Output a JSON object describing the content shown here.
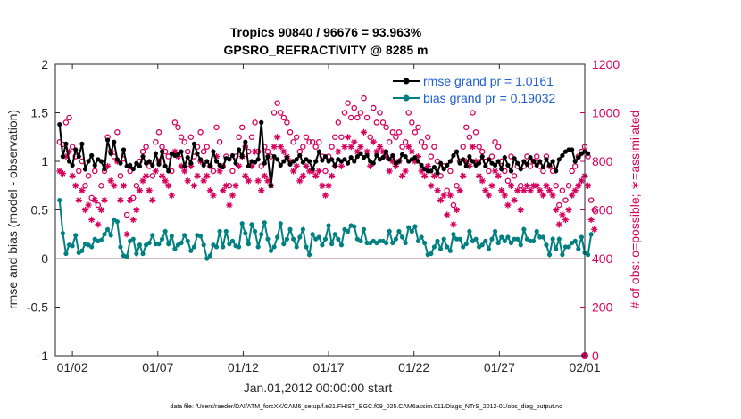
{
  "chart_data": {
    "type": "line",
    "title": "Tropics 90840 / 96676 = 93.963%",
    "subtitle": "GPSRO_REFRACTIVITY @ 8285 m",
    "xlabel": "Jan.01,2012 00:00:00 start",
    "ylabel": "rmse and bias (model - observation)",
    "y2label": "# of obs: o=possible; ∗=assimilated",
    "footnote": "data file: /Users/raeder/DAI/ATM_forcXX/CAM6_setup/f.e21.FHIST_BGC.f09_025.CAM6assim.011/Diags_NTrS_2012-01/obs_diag_output.nc",
    "xlim": [
      0.5,
      31.5
    ],
    "ylim": [
      -1,
      2
    ],
    "y2lim": [
      0,
      1200
    ],
    "x_ticks": [
      1.5,
      6.5,
      11.5,
      16.5,
      21.5,
      26.5,
      31.5
    ],
    "x_tick_labels": [
      "01/02",
      "01/07",
      "01/12",
      "01/17",
      "01/22",
      "01/27",
      "02/01"
    ],
    "y_ticks": [
      -1,
      -0.5,
      0,
      0.5,
      1,
      1.5,
      2
    ],
    "y_tick_labels": [
      "-1",
      "-0.5",
      "0",
      "0.5",
      "1",
      "1.5",
      "2"
    ],
    "y2_ticks": [
      0,
      200,
      400,
      600,
      800,
      1000,
      1200
    ],
    "y2_tick_labels": [
      "0",
      "200",
      "400",
      "600",
      "800",
      "1000",
      "1200"
    ],
    "legend_position": "top-right",
    "colors": {
      "rmse": "#000000",
      "bias": "#008080",
      "obs": "#d6005c",
      "zero_line": "#c9a5a5",
      "legend_text": "#1f5fd1"
    },
    "series": [
      {
        "name": "rmse grand pr = 1.0161",
        "values": [
          1.38,
          1.05,
          1.18,
          1.0,
          0.96,
          1.12,
          1.05,
          1.18,
          0.92,
          1.0,
          1.06,
          0.96,
          1.02,
          1.0,
          0.92,
          1.22,
          1.08,
          1.2,
          1.02,
          0.98,
          1.12,
          0.95,
          0.96,
          0.92,
          0.98,
          0.95,
          1.05,
          0.98,
          1.0,
          0.96,
          1.08,
          0.97,
          1.1,
          0.95,
          0.9,
          1.08,
          1.06,
          1.07,
          1.1,
          0.95,
          1.04,
          0.98,
          1.18,
          1.08,
          1.02,
          0.96,
          1.0,
          0.95,
          1.1,
          1.0,
          0.96,
          0.94,
          1.03,
          1.02,
          1.06,
          0.98,
          1.12,
          1.05,
          1.2,
          0.95,
          1.0,
          0.99,
          1.02,
          1.4,
          0.98,
          1.05,
          0.75,
          1.05,
          1.02,
          0.96,
          1.0,
          1.04,
          0.97,
          1.0,
          1.02,
          1.06,
          0.99,
          1.02,
          1.0,
          0.92,
          1.0,
          1.1,
          1.01,
          1.05,
          1.0,
          1.02,
          0.96,
          1.02,
          1.0,
          1.02,
          0.98,
          1.04,
          1.0,
          1.05,
          1.08,
          1.04,
          1.06,
          1.0,
          0.98,
          1.06,
          1.02,
          1.04,
          1.1,
          1.02,
          1.06,
          0.98,
          1.0,
          1.07,
          1.05,
          1.0,
          1.02,
          1.04,
          1.0,
          0.96,
          0.92,
          0.9,
          0.9,
          0.94,
          0.88,
          0.98,
          0.92,
          0.96,
          1.0,
          1.06,
          1.1,
          0.98,
          1.02,
          0.95,
          1.05,
          1.0,
          0.96,
          0.98,
          1.05,
          0.95,
          1.02,
          0.98,
          0.96,
          1.0,
          0.92,
          1.04,
          0.96,
          0.9,
          1.03,
          0.98,
          0.92,
          1.0,
          0.97,
          1.04,
          1.0,
          0.96,
          1.0,
          0.94,
          1.02,
          0.96,
          1.0,
          0.9,
          1.02,
          1.06,
          1.1,
          1.12,
          1.12,
          1.0,
          1.04,
          1.08,
          1.1,
          1.08
        ],
        "color": "#000000"
      },
      {
        "name": "bias grand pr = 0.19032",
        "values": [
          0.6,
          0.26,
          0.05,
          0.14,
          0.13,
          0.24,
          0.06,
          0.08,
          0.15,
          0.14,
          0.12,
          0.2,
          0.18,
          0.19,
          0.25,
          0.3,
          0.24,
          0.4,
          0.38,
          0.12,
          0.03,
          0.02,
          0.18,
          0.2,
          0.05,
          0.14,
          0.05,
          0.14,
          0.16,
          0.24,
          0.15,
          0.15,
          0.2,
          0.28,
          0.15,
          0.23,
          0.1,
          0.14,
          0.16,
          0.24,
          0.18,
          0.08,
          0.12,
          0.24,
          0.23,
          0.14,
          0.0,
          0.03,
          0.14,
          0.12,
          0.28,
          0.12,
          0.28,
          0.15,
          0.18,
          0.13,
          0.12,
          0.36,
          0.26,
          0.15,
          0.35,
          0.28,
          0.12,
          0.25,
          0.37,
          0.2,
          0.08,
          0.12,
          0.22,
          0.36,
          0.15,
          0.2,
          0.3,
          0.2,
          0.12,
          0.22,
          0.3,
          0.12,
          0.04,
          0.25,
          0.2,
          0.22,
          0.14,
          0.2,
          0.34,
          0.15,
          0.25,
          0.2,
          0.14,
          0.3,
          0.28,
          0.34,
          0.33,
          0.2,
          0.18,
          0.3,
          0.16,
          0.16,
          0.18,
          0.16,
          0.18,
          0.18,
          0.16,
          0.28,
          0.16,
          0.2,
          0.28,
          0.22,
          0.16,
          0.32,
          0.28,
          0.33,
          0.18,
          0.22,
          0.16,
          0.04,
          0.05,
          0.12,
          0.18,
          0.1,
          0.2,
          0.12,
          0.08,
          0.25,
          0.2,
          0.2,
          0.12,
          0.15,
          0.28,
          0.18,
          0.2,
          0.12,
          0.14,
          0.18,
          0.1,
          0.2,
          0.28,
          0.16,
          0.22,
          0.18,
          0.22,
          0.16,
          0.2,
          0.2,
          0.14,
          0.3,
          0.2,
          0.18,
          0.18,
          0.28,
          0.22,
          0.22,
          0.14,
          0.04,
          0.2,
          0.1,
          0.2,
          0.04,
          0.12,
          0.12,
          0.16,
          0.18,
          0.1,
          0.22,
          0.06,
          0.04,
          0.25
        ],
        "color": "#008080"
      }
    ],
    "obs_possible": [
      880,
      870,
      960,
      980,
      860,
      820,
      760,
      800,
      700,
      740,
      650,
      760,
      620,
      700,
      760,
      900,
      840,
      820,
      920,
      740,
      810,
      580,
      760,
      650,
      700,
      800,
      840,
      860,
      780,
      740,
      880,
      920,
      860,
      840,
      820,
      760,
      960,
      940,
      900,
      880,
      840,
      900,
      820,
      860,
      920,
      840,
      860,
      780,
      760,
      940,
      880,
      780,
      820,
      700,
      760,
      820,
      900,
      940,
      860,
      840,
      900,
      960,
      840,
      780,
      860,
      840,
      820,
      1000,
      1040,
      1000,
      980,
      960,
      920,
      880,
      900,
      840,
      860,
      900,
      880,
      880,
      860,
      880,
      820,
      760,
      820,
      860,
      900,
      960,
      900,
      1000,
      1040,
      980,
      1020,
      980,
      1000,
      1060,
      980,
      900,
      1020,
      960,
      1000,
      960,
      940,
      880,
      920,
      900,
      920,
      860,
      880,
      1000,
      960,
      920,
      940,
      880,
      860,
      900,
      820,
      860,
      800,
      740,
      780,
      680,
      760,
      620,
      700,
      800,
      860,
      940,
      900,
      1000,
      920,
      860,
      840,
      800,
      760,
      820,
      880,
      860,
      800,
      760,
      720,
      820,
      740,
      780,
      700,
      780,
      820,
      780,
      800,
      820,
      780,
      760,
      820,
      780,
      760,
      700,
      620,
      680,
      640,
      700,
      760,
      780,
      820,
      840,
      860,
      820,
      640,
      600
    ],
    "obs_assimilated": [
      760,
      750,
      820,
      840,
      740,
      700,
      640,
      680,
      600,
      620,
      560,
      640,
      540,
      600,
      640,
      780,
      720,
      700,
      800,
      640,
      700,
      500,
      640,
      560,
      600,
      680,
      720,
      740,
      680,
      640,
      760,
      800,
      740,
      720,
      700,
      660,
      840,
      820,
      780,
      760,
      720,
      780,
      700,
      740,
      800,
      720,
      740,
      680,
      660,
      820,
      760,
      680,
      700,
      620,
      660,
      700,
      780,
      820,
      740,
      720,
      780,
      840,
      720,
      680,
      740,
      720,
      700,
      860,
      900,
      860,
      840,
      820,
      800,
      760,
      780,
      720,
      740,
      780,
      760,
      760,
      740,
      760,
      700,
      660,
      700,
      740,
      780,
      840,
      780,
      860,
      900,
      860,
      880,
      840,
      860,
      920,
      840,
      780,
      880,
      840,
      860,
      840,
      820,
      760,
      800,
      780,
      800,
      740,
      760,
      860,
      840,
      800,
      820,
      760,
      740,
      780,
      700,
      740,
      680,
      640,
      660,
      580,
      660,
      540,
      600,
      680,
      740,
      800,
      780,
      860,
      800,
      740,
      720,
      680,
      660,
      700,
      760,
      740,
      680,
      660,
      620,
      700,
      640,
      680,
      600,
      680,
      700,
      680,
      700,
      700,
      680,
      660,
      700,
      680,
      660,
      600,
      540,
      580,
      560,
      600,
      660,
      680,
      700,
      720,
      740,
      700,
      560,
      520
    ]
  }
}
